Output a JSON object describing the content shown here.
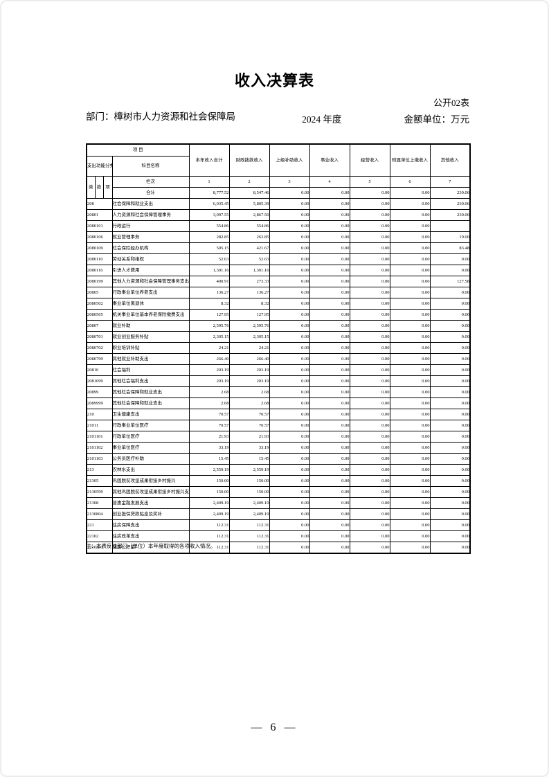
{
  "header": {
    "title": "收入决算表",
    "table_code": "公开02表",
    "department": "部门：樟树市人力资源和社会保障局",
    "year": "2024 年度",
    "unit": "金额单位：万元"
  },
  "table": {
    "top_header": "项  目",
    "code_header": "支出功能分类科目编码",
    "name_header": "科目名称",
    "code_sub_headers": [
      "类",
      "款",
      "项"
    ],
    "row_label": "栏次",
    "column_numbers": [
      "1",
      "2",
      "3",
      "4",
      "5",
      "6",
      "7"
    ],
    "columns": [
      "本年收入合计",
      "财政拨款收入",
      "上级补助收入",
      "事业收入",
      "经营收入",
      "附属单位上缴收入",
      "其他收入"
    ],
    "total_row": {
      "name": "合计",
      "values": [
        "8,777.52",
        "8,547.46",
        "0.00",
        "0.00",
        "0.00",
        "0.00",
        "230.06"
      ]
    },
    "rows": [
      {
        "code": "208",
        "name": "社会保障和就业支出",
        "values": [
          "6,035.45",
          "5,805.39",
          "0.00",
          "0.00",
          "0.00",
          "0.00",
          "230.06"
        ]
      },
      {
        "code": "20801",
        "name": "人力资源和社会保障管理事务",
        "values": [
          "3,097.55",
          "2,867.50",
          "0.00",
          "0.00",
          "0.00",
          "0.00",
          "230.06"
        ]
      },
      {
        "code": "2080101",
        "name": "行政运行",
        "values": [
          "554.86",
          "554.86",
          "0.00",
          "0.00",
          "0.00",
          "0.00",
          ""
        ]
      },
      {
        "code": "2080106",
        "name": "就业管理事务",
        "values": [
          "282.85",
          "263.85",
          "0.00",
          "0.00",
          "0.00",
          "0.00",
          "19.00"
        ]
      },
      {
        "code": "2080109",
        "name": "社会保险经办机构",
        "values": [
          "505.15",
          "421.67",
          "0.00",
          "0.00",
          "0.00",
          "0.00",
          "83.48"
        ]
      },
      {
        "code": "2080110",
        "name": "劳动关系和维权",
        "values": [
          "52.63",
          "52.63",
          "0.00",
          "0.00",
          "0.00",
          "0.00",
          "0.00"
        ]
      },
      {
        "code": "2080116",
        "name": "引进人才费用",
        "values": [
          "1,301.16",
          "1,301.16",
          "0.00",
          "0.00",
          "0.00",
          "0.00",
          "0.00"
        ]
      },
      {
        "code": "2080199",
        "name": "其他人力资源和社会保障管理事务支出",
        "values": [
          "400.91",
          "273.33",
          "0.00",
          "0.00",
          "0.00",
          "0.00",
          "127.58"
        ]
      },
      {
        "code": "20805",
        "name": "行政事业单位养老支出",
        "values": [
          "136.27",
          "136.27",
          "0.00",
          "0.00",
          "0.00",
          "0.00",
          "0.00"
        ]
      },
      {
        "code": "2080502",
        "name": "事业单位离退休",
        "values": [
          "8.32",
          "8.32",
          "0.00",
          "0.00",
          "0.00",
          "0.00",
          "0.00"
        ]
      },
      {
        "code": "2080505",
        "name": "机关事业单位基本养老保险缴费支出",
        "values": [
          "127.95",
          "127.95",
          "0.00",
          "0.00",
          "0.00",
          "0.00",
          "0.00"
        ]
      },
      {
        "code": "20807",
        "name": "就业补助",
        "values": [
          "2,595.76",
          "2,595.76",
          "0.00",
          "0.00",
          "0.00",
          "0.00",
          "0.00"
        ]
      },
      {
        "code": "2080701",
        "name": "就业创业服务补贴",
        "values": [
          "2,305.15",
          "2,305.15",
          "0.00",
          "0.00",
          "0.00",
          "0.00",
          "0.00"
        ]
      },
      {
        "code": "2080702",
        "name": "职业培训补贴",
        "values": [
          "24.21",
          "24.21",
          "0.00",
          "0.00",
          "0.00",
          "0.00",
          "0.00"
        ]
      },
      {
        "code": "2080799",
        "name": "其他就业补助支出",
        "values": [
          "266.40",
          "266.40",
          "0.00",
          "0.00",
          "0.00",
          "0.00",
          "0.00"
        ]
      },
      {
        "code": "20810",
        "name": "社会福利",
        "values": [
          "203.19",
          "203.19",
          "0.00",
          "0.00",
          "0.00",
          "0.00",
          "0.00"
        ]
      },
      {
        "code": "2081099",
        "name": "其他社会福利支出",
        "values": [
          "203.19",
          "203.19",
          "0.00",
          "0.00",
          "0.00",
          "0.00",
          "0.00"
        ]
      },
      {
        "code": "20899",
        "name": "其他社会保障和就业支出",
        "values": [
          "2.68",
          "2.68",
          "0.00",
          "0.00",
          "0.00",
          "0.00",
          "0.00"
        ]
      },
      {
        "code": "2089999",
        "name": "其他社会保障和就业支出",
        "values": [
          "2.68",
          "2.68",
          "0.00",
          "0.00",
          "0.00",
          "0.00",
          "0.00"
        ]
      },
      {
        "code": "210",
        "name": "卫生健康支出",
        "values": [
          "70.57",
          "70.57",
          "0.00",
          "0.00",
          "0.00",
          "0.00",
          "0.00"
        ]
      },
      {
        "code": "21011",
        "name": "行政事业单位医疗",
        "values": [
          "70.57",
          "70.57",
          "0.00",
          "0.00",
          "0.00",
          "0.00",
          "0.00"
        ]
      },
      {
        "code": "2101101",
        "name": "行政单位医疗",
        "values": [
          "21.93",
          "21.93",
          "0.00",
          "0.00",
          "0.00",
          "0.00",
          "0.00"
        ]
      },
      {
        "code": "2101102",
        "name": "事业单位医疗",
        "values": [
          "33.19",
          "33.19",
          "0.00",
          "0.00",
          "0.00",
          "0.00",
          "0.00"
        ]
      },
      {
        "code": "2101103",
        "name": "公务员医疗补助",
        "values": [
          "15.45",
          "15.45",
          "0.00",
          "0.00",
          "0.00",
          "0.00",
          "0.00"
        ]
      },
      {
        "code": "213",
        "name": "农林水支出",
        "values": [
          "2,559.19",
          "2,559.19",
          "0.00",
          "0.00",
          "0.00",
          "0.00",
          "0.00"
        ]
      },
      {
        "code": "21305",
        "name": "巩固脱贫攻坚成果衔接乡村振兴",
        "values": [
          "150.00",
          "150.00",
          "0.00",
          "0.00",
          "0.00",
          "0.00",
          "0.00"
        ]
      },
      {
        "code": "2130599",
        "name": "其他巩固脱贫攻坚成果衔接乡村振兴支出",
        "values": [
          "150.00",
          "150.00",
          "0.00",
          "0.00",
          "0.00",
          "0.00",
          "0.00"
        ]
      },
      {
        "code": "21308",
        "name": "普惠金融发展支出",
        "values": [
          "2,409.19",
          "2,409.19",
          "0.00",
          "0.00",
          "0.00",
          "0.00",
          "0.00"
        ]
      },
      {
        "code": "2130804",
        "name": "创业担保贷款贴息及奖补",
        "values": [
          "2,409.19",
          "2,409.19",
          "0.00",
          "0.00",
          "0.00",
          "0.00",
          "0.00"
        ]
      },
      {
        "code": "221",
        "name": "住房保障支出",
        "values": [
          "112.31",
          "112.31",
          "0.00",
          "0.00",
          "0.00",
          "0.00",
          "0.00"
        ]
      },
      {
        "code": "22102",
        "name": "住房改革支出",
        "values": [
          "112.31",
          "112.31",
          "0.00",
          "0.00",
          "0.00",
          "0.00",
          "0.00"
        ]
      },
      {
        "code": "2210201",
        "name": "住房公积金",
        "values": [
          "112.31",
          "112.31",
          "0.00",
          "0.00",
          "0.00",
          "0.00",
          "0.00"
        ]
      }
    ]
  },
  "footnote": "注：本表反映部门（单位）本年度取得的各项收入情况。",
  "page_number": "— 6 —"
}
